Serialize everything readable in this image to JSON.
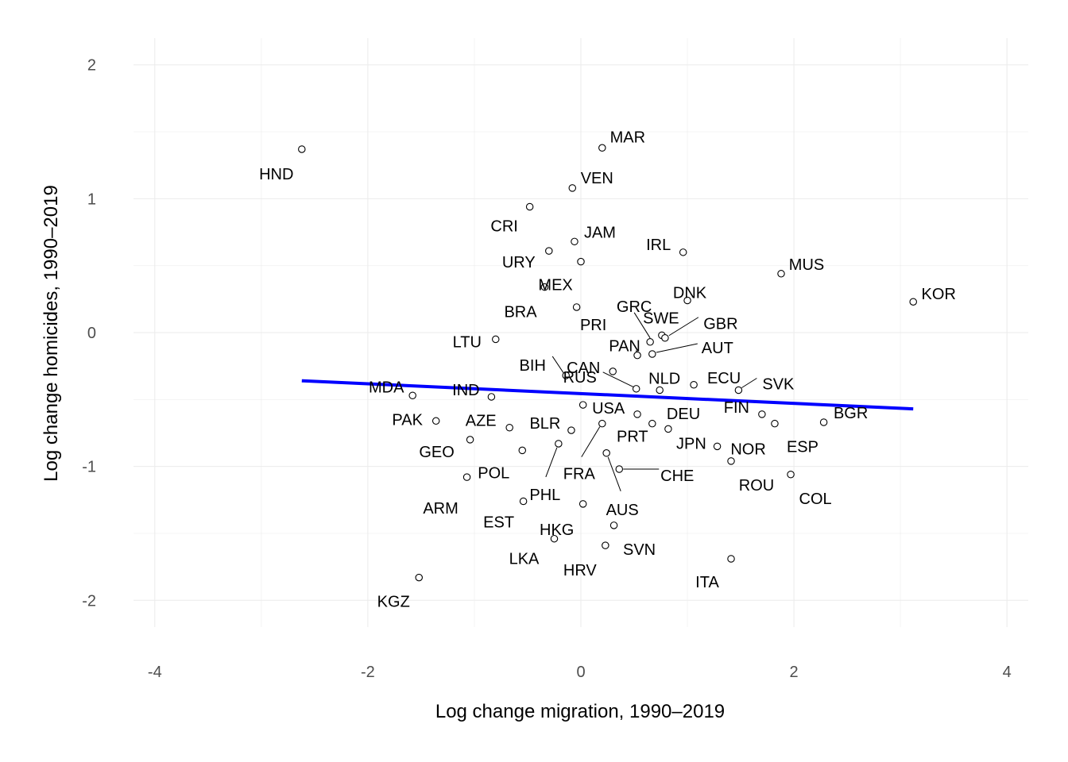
{
  "chart_data": {
    "type": "scatter",
    "xlabel": "Log change migration, 1990–2019",
    "ylabel": "Log change homicides, 1990–2019",
    "xlim": [
      -4.2,
      4.2
    ],
    "ylim": [
      -2.2,
      2.2
    ],
    "x_ticks": [
      -4,
      -2,
      0,
      2,
      4
    ],
    "y_ticks": [
      -2,
      -1,
      0,
      1,
      2
    ],
    "x_tick_labels": [
      "-4",
      "-2",
      "0",
      "2",
      "4"
    ],
    "y_tick_labels": [
      "-2",
      "-1",
      "0",
      "1",
      "2"
    ],
    "grid": true,
    "fit_line": {
      "color": "#0000ff",
      "x": [
        -2.62,
        3.12
      ],
      "y": [
        -0.36,
        -0.57
      ]
    },
    "points": [
      {
        "label": "HND",
        "x": -2.62,
        "y": 1.37
      },
      {
        "label": "MAR",
        "x": 0.2,
        "y": 1.38
      },
      {
        "label": "VEN",
        "x": -0.08,
        "y": 1.08
      },
      {
        "label": "CRI",
        "x": -0.48,
        "y": 0.94
      },
      {
        "label": "JAM",
        "x": -0.06,
        "y": 0.68
      },
      {
        "label": "URY",
        "x": -0.3,
        "y": 0.61
      },
      {
        "label": "IRL",
        "x": 0.96,
        "y": 0.6
      },
      {
        "label": "MUS",
        "x": 1.88,
        "y": 0.44
      },
      {
        "label": "KOR",
        "x": 3.12,
        "y": 0.23
      },
      {
        "label": "MEX",
        "x": -0.34,
        "y": 0.34
      },
      {
        "label": "DNK",
        "x": 1.0,
        "y": 0.24
      },
      {
        "label": "BRA",
        "x": 0.0,
        "y": 0.53
      },
      {
        "label": "PRI",
        "x": -0.04,
        "y": 0.19
      },
      {
        "label": "GRC",
        "x": 0.65,
        "y": -0.07
      },
      {
        "label": "SWE",
        "x": 0.76,
        "y": -0.02
      },
      {
        "label": "GBR",
        "x": 0.79,
        "y": -0.04
      },
      {
        "label": "LTU",
        "x": -0.8,
        "y": -0.05
      },
      {
        "label": "PAN",
        "x": 0.53,
        "y": -0.17
      },
      {
        "label": "AUT",
        "x": 0.67,
        "y": -0.16
      },
      {
        "label": "BIH",
        "x": -0.14,
        "y": -0.32
      },
      {
        "label": "CAN",
        "x": 0.3,
        "y": -0.29
      },
      {
        "label": "NLD",
        "x": 0.74,
        "y": -0.43
      },
      {
        "label": "ECU",
        "x": 1.06,
        "y": -0.39
      },
      {
        "label": "SVK",
        "x": 1.48,
        "y": -0.43
      },
      {
        "label": "MDA",
        "x": -1.58,
        "y": -0.47
      },
      {
        "label": "IND",
        "x": -0.84,
        "y": -0.48
      },
      {
        "label": "RUS",
        "x": 0.52,
        "y": -0.42
      },
      {
        "label": "USA",
        "x": 0.02,
        "y": -0.54
      },
      {
        "label": "BGR",
        "x": 2.28,
        "y": -0.67
      },
      {
        "label": "PAK",
        "x": -1.36,
        "y": -0.66
      },
      {
        "label": "AZE",
        "x": -0.67,
        "y": -0.71
      },
      {
        "label": "BLR",
        "x": -0.09,
        "y": -0.73
      },
      {
        "label": "DEU",
        "x": 0.53,
        "y": -0.61
      },
      {
        "label": "FIN",
        "x": 1.7,
        "y": -0.61
      },
      {
        "label": "PRT",
        "x": 0.67,
        "y": -0.68
      },
      {
        "label": "JPN",
        "x": 0.82,
        "y": -0.72
      },
      {
        "label": "ESP",
        "x": 1.82,
        "y": -0.68
      },
      {
        "label": "NOR",
        "x": 1.28,
        "y": -0.85
      },
      {
        "label": "GEO",
        "x": -1.04,
        "y": -0.8
      },
      {
        "label": "POL",
        "x": -0.55,
        "y": -0.88
      },
      {
        "label": "FRA",
        "x": 0.2,
        "y": -0.68
      },
      {
        "label": "CHE",
        "x": 0.36,
        "y": -1.02
      },
      {
        "label": "ROU",
        "x": 1.41,
        "y": -0.96
      },
      {
        "label": "ARM",
        "x": -1.07,
        "y": -1.08
      },
      {
        "label": "COL",
        "x": 1.97,
        "y": -1.06
      },
      {
        "label": "PHL",
        "x": -0.21,
        "y": -0.83
      },
      {
        "label": "AUS",
        "x": 0.24,
        "y": -0.9
      },
      {
        "label": "EST",
        "x": -0.54,
        "y": -1.26
      },
      {
        "label": "HKG",
        "x": 0.02,
        "y": -1.28
      },
      {
        "label": "SVN",
        "x": 0.31,
        "y": -1.44
      },
      {
        "label": "LKA",
        "x": -0.25,
        "y": -1.54
      },
      {
        "label": "HRV",
        "x": 0.23,
        "y": -1.59
      },
      {
        "label": "ITA",
        "x": 1.41,
        "y": -1.69
      },
      {
        "label": "KGZ",
        "x": -1.52,
        "y": -1.83
      }
    ]
  }
}
